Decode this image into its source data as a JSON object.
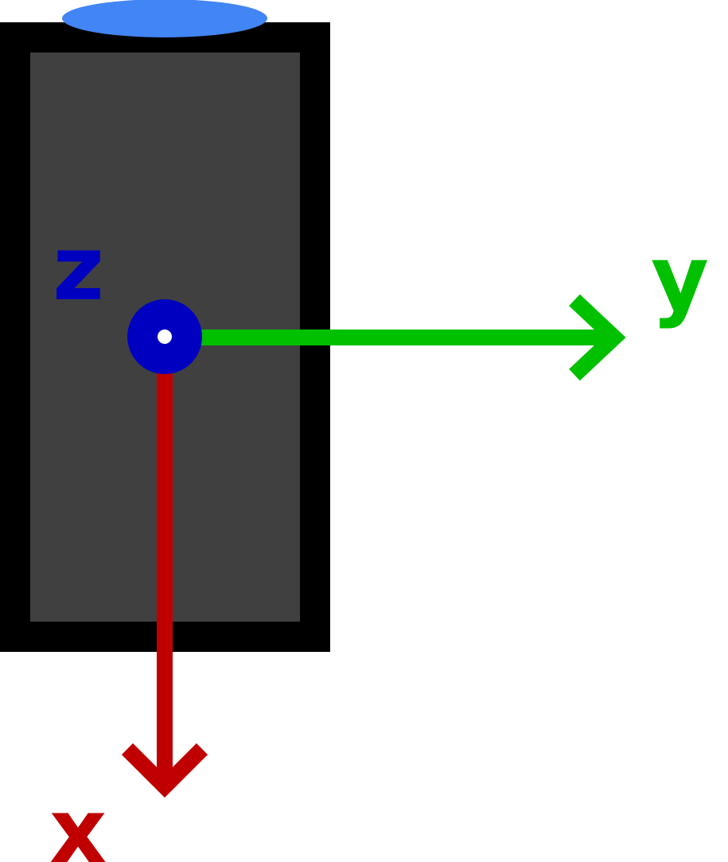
{
  "colors": {
    "background": "#ffffff",
    "device_frame": "#000000",
    "device_screen": "#404040",
    "device_top_cap": "#4285f4",
    "x_axis": "#c00000",
    "y_axis": "#00c000",
    "z_axis": "#0000c0",
    "origin_dot": "#ffffff"
  },
  "axes": {
    "x": {
      "label": "x",
      "direction": "down"
    },
    "y": {
      "label": "y",
      "direction": "right"
    },
    "z": {
      "label": "z",
      "direction": "out-of-screen"
    }
  },
  "device": {
    "orientation": "portrait"
  }
}
